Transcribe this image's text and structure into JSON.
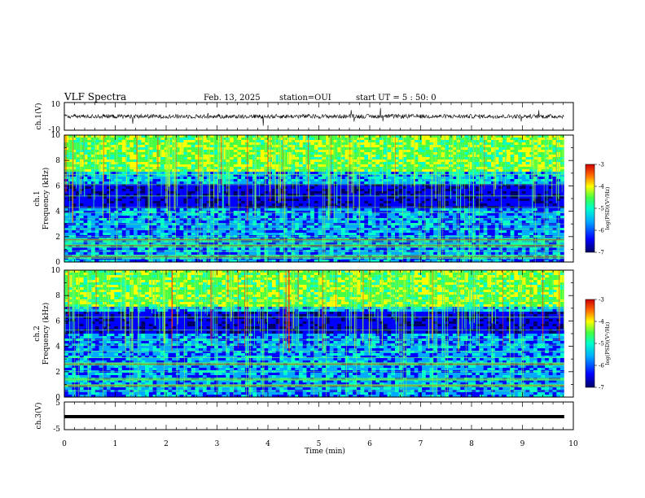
{
  "header": {
    "title": "VLF Spectra",
    "date": "Feb. 13, 2025",
    "station": "station=OUI",
    "start": "start UT =  5 : 50: 0"
  },
  "chart_data": [
    {
      "type": "line",
      "panel": "waveform-ch1",
      "ylabel": "ch.1(V)",
      "ylim": [
        -10,
        10
      ],
      "yticks": [
        "10",
        "-10"
      ],
      "x_range": [
        0,
        9.82
      ],
      "trace": "noise around 0 V"
    },
    {
      "type": "heatmap",
      "panel": "spectrogram-ch1",
      "ylabel_top": "ch.1",
      "ylabel": "Frequency (kHz)",
      "ylim": [
        0,
        10
      ],
      "yticks": [
        "0",
        "2",
        "4",
        "6",
        "8",
        "10"
      ],
      "xlim": [
        0,
        10
      ],
      "data_x_range": [
        0,
        9.82
      ],
      "colorbar": {
        "label": "log(PSD)(V²/Hz)",
        "range": [
          -7,
          -3
        ],
        "ticks": [
          "-3",
          "-4",
          "-5",
          "-6",
          "-7"
        ]
      },
      "horizontal_lines_khz": [
        0.3,
        0.55,
        0.85,
        1.15,
        1.55,
        2.0,
        2.6,
        3.0,
        3.4,
        3.9,
        4.3,
        5.2,
        6.1,
        6.9,
        7.4
      ],
      "bright_bands_khz": [
        0.4,
        1.3,
        1.75
      ],
      "dark_band_khz": [
        4.2,
        6.2
      ]
    },
    {
      "type": "heatmap",
      "panel": "spectrogram-ch2",
      "ylabel_top": "ch.2",
      "ylabel": "Frequency (kHz)",
      "ylim": [
        0,
        10
      ],
      "yticks": [
        "0",
        "2",
        "4",
        "6",
        "8",
        "10"
      ],
      "xlim": [
        0,
        10
      ],
      "data_x_range": [
        0,
        9.82
      ],
      "colorbar": {
        "label": "log(PSD)(V²/Hz)",
        "range": [
          -7,
          -3
        ],
        "ticks": [
          "-3",
          "-4",
          "-5",
          "-6",
          "-7"
        ]
      },
      "horizontal_lines_khz": [
        0.5,
        0.95,
        1.4,
        2.0,
        2.7,
        3.1,
        3.6,
        4.1,
        4.5,
        5.3,
        6.3,
        7.0,
        7.6
      ],
      "bright_bands_khz": [
        0.9,
        1.4,
        2.6
      ],
      "dark_band_khz": [
        5.0,
        6.8
      ]
    },
    {
      "type": "line",
      "panel": "waveform-ch3",
      "ylabel": "ch.3(V)",
      "ylim": [
        -5,
        5
      ],
      "yticks": [
        "5",
        "-5"
      ],
      "x_range": [
        0,
        9.82
      ],
      "trace": "thick flat line near -1 V"
    }
  ],
  "xaxis": {
    "label": "Time (min)",
    "ticks": [
      "0",
      "1",
      "2",
      "3",
      "4",
      "5",
      "6",
      "7",
      "8",
      "9",
      "10"
    ]
  },
  "colors": {
    "colormap": [
      "#000066",
      "#0000ff",
      "#00aaff",
      "#00ffcc",
      "#44ff44",
      "#ffff00",
      "#ff6600",
      "#cc0000"
    ]
  }
}
